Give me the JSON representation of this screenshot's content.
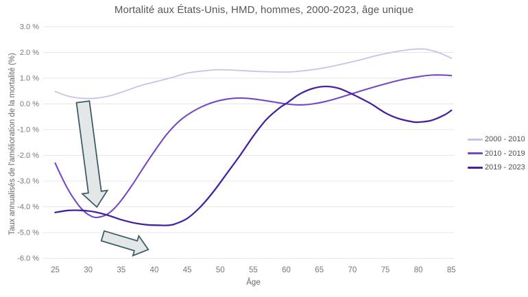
{
  "title": "Mortalité aux États-Unis, HMD, hommes, 2000-2023, âge unique",
  "colors": {
    "background": "#ffffff",
    "title_text": "#575757",
    "axis_title_text": "#666666",
    "tick_text": "#767676",
    "legend_text": "#4d4d4d",
    "gridline": "#e6e6e6",
    "arrow_fill": "#e4e7e7",
    "arrow_stroke": "#3f5b66",
    "series_2000_2010": "#c9c2e6",
    "series_2010_2019": "#7448c2",
    "series_2019_2023": "#45219f"
  },
  "legend": {
    "items": [
      {
        "label": "2000 - 2010",
        "color": "#c9c2e6"
      },
      {
        "label": "2010 - 2019",
        "color": "#7448c2"
      },
      {
        "label": "2019 - 2023",
        "color": "#45219f"
      }
    ]
  },
  "chart_data": {
    "type": "line",
    "title": "Mortalité aux États-Unis, HMD, hommes, 2000-2023, âge unique",
    "xlabel": "Âge",
    "ylabel": "Taux annualisés de l'amélioration de la mortalité (%)",
    "xlim": [
      25,
      85
    ],
    "ylim": [
      -6,
      3
    ],
    "grid": true,
    "legend_position": "right",
    "x_ticks": [
      25,
      30,
      35,
      40,
      45,
      50,
      55,
      60,
      65,
      70,
      75,
      80,
      85
    ],
    "y_ticks": [
      {
        "value": 3,
        "label": "3.0 %"
      },
      {
        "value": 2,
        "label": "2.0 %"
      },
      {
        "value": 1,
        "label": "1.0 %"
      },
      {
        "value": 0,
        "label": "0.0 %"
      },
      {
        "value": -1,
        "label": "-1.0 %"
      },
      {
        "value": -2,
        "label": "-2.0 %"
      },
      {
        "value": -3,
        "label": "-3.0 %"
      },
      {
        "value": -4,
        "label": "-4.0 %"
      },
      {
        "value": -5,
        "label": "-5.0 %"
      },
      {
        "value": -6,
        "label": "-6.0 %"
      }
    ],
    "series": [
      {
        "name": "2000 - 2010",
        "color": "#c9c2e6",
        "width": 1.8,
        "x": [
          25,
          27,
          29,
          31,
          33,
          35,
          38,
          40,
          43,
          45,
          48,
          50,
          53,
          56,
          59,
          61,
          63,
          65,
          68,
          71,
          74,
          77,
          79,
          81,
          83,
          85
        ],
        "y": [
          0.48,
          0.3,
          0.22,
          0.22,
          0.3,
          0.45,
          0.72,
          0.85,
          1.05,
          1.2,
          1.3,
          1.33,
          1.3,
          1.26,
          1.24,
          1.25,
          1.3,
          1.37,
          1.52,
          1.7,
          1.9,
          2.05,
          2.12,
          2.13,
          2.0,
          1.78
        ]
      },
      {
        "name": "2010 - 2019",
        "color": "#7448c2",
        "width": 2.1,
        "x": [
          25,
          26,
          27,
          28,
          29,
          30,
          31,
          32,
          33,
          34,
          35,
          36,
          37,
          38,
          40,
          42,
          44,
          46,
          48,
          50,
          52,
          54,
          56,
          58,
          60,
          62,
          64,
          66,
          68,
          70,
          72,
          74,
          76,
          78,
          80,
          82,
          84,
          85
        ],
        "y": [
          -2.3,
          -2.85,
          -3.35,
          -3.75,
          -4.08,
          -4.3,
          -4.41,
          -4.38,
          -4.27,
          -4.05,
          -3.75,
          -3.4,
          -3.02,
          -2.62,
          -1.85,
          -1.15,
          -0.62,
          -0.27,
          -0.02,
          0.14,
          0.22,
          0.22,
          0.16,
          0.08,
          0.0,
          -0.04,
          0.0,
          0.1,
          0.24,
          0.4,
          0.56,
          0.71,
          0.85,
          0.97,
          1.06,
          1.12,
          1.12,
          1.1
        ]
      },
      {
        "name": "2019 - 2023",
        "color": "#45219f",
        "width": 2.3,
        "x": [
          25,
          27,
          29,
          31,
          33,
          35,
          37,
          39,
          41,
          42,
          43,
          45,
          47,
          49,
          51,
          53,
          55,
          57,
          59,
          60,
          62,
          64,
          66,
          68,
          70,
          72,
          73,
          75,
          77,
          79,
          80,
          82,
          84,
          85
        ],
        "y": [
          -4.22,
          -4.14,
          -4.14,
          -4.2,
          -4.33,
          -4.5,
          -4.63,
          -4.7,
          -4.72,
          -4.72,
          -4.68,
          -4.45,
          -4.0,
          -3.4,
          -2.7,
          -2.0,
          -1.25,
          -0.6,
          -0.15,
          0.02,
          0.38,
          0.6,
          0.68,
          0.6,
          0.38,
          0.12,
          -0.02,
          -0.35,
          -0.57,
          -0.69,
          -0.71,
          -0.64,
          -0.42,
          -0.25
        ]
      }
    ],
    "annotations": [
      {
        "name": "down-arrow",
        "type": "arrow",
        "from_age": 29.2,
        "from_val": 0.08,
        "to_age": 31.3,
        "to_val": -4.01,
        "shaft_w": 19,
        "head_w": 37,
        "head_l": 22
      },
      {
        "name": "right-down-arrow",
        "type": "arrow",
        "from_age": 32.2,
        "from_val": -5.13,
        "to_age": 39.1,
        "to_val": -5.66,
        "shaft_w": 15,
        "head_w": 30,
        "head_l": 19
      }
    ]
  }
}
